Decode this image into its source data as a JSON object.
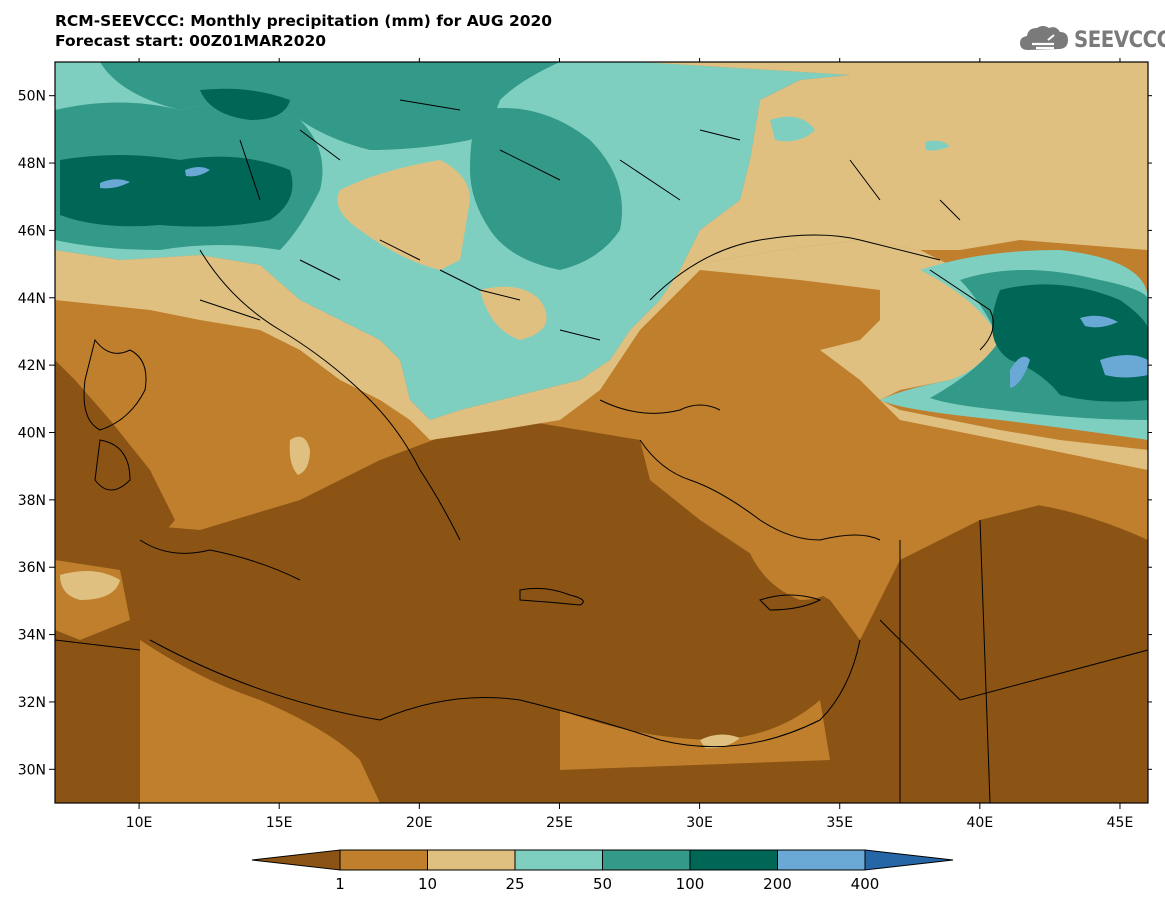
{
  "title": {
    "line1": "RCM-SEEVCCC: Monthly precipitation (mm) for AUG 2020",
    "line2": "Forecast start: 00Z01MAR2020"
  },
  "logo": {
    "text": "SEEVCCC",
    "icon": "cloud-icon"
  },
  "map": {
    "lon_range": [
      7,
      46
    ],
    "lat_range": [
      29,
      51
    ],
    "lat_ticks": [
      "50N",
      "48N",
      "46N",
      "44N",
      "42N",
      "40N",
      "38N",
      "36N",
      "34N",
      "32N",
      "30N"
    ],
    "lon_ticks": [
      "10E",
      "15E",
      "20E",
      "25E",
      "30E",
      "35E",
      "40E",
      "45E"
    ]
  },
  "colorbar": {
    "levels": [
      "1",
      "10",
      "25",
      "50",
      "100",
      "200",
      "400"
    ],
    "colors": [
      "#8b5414",
      "#bf7f2c",
      "#dfc080",
      "#7fcfc0",
      "#339988",
      "#006656",
      "#6aa8d6",
      "#2766a6"
    ]
  }
}
